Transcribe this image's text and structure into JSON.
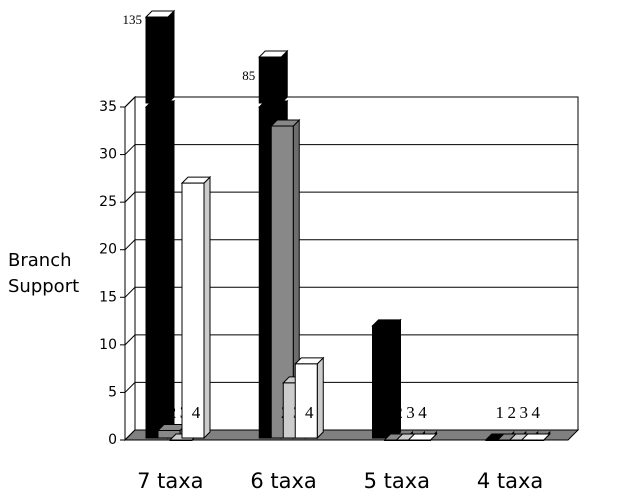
{
  "chart_data": {
    "type": "bar3d",
    "y_label": "Branch Support",
    "categories": [
      "7 taxa",
      "6 taxa",
      "5 taxa",
      "4 taxa"
    ],
    "series": [
      {
        "name": "1",
        "color": "#000000",
        "values": [
          135,
          85,
          12,
          0
        ]
      },
      {
        "name": "2",
        "color": "#888888",
        "values": [
          1,
          33,
          0,
          0
        ]
      },
      {
        "name": "3",
        "color": "#cccccc",
        "values": [
          0,
          6,
          0,
          0
        ]
      },
      {
        "name": "4",
        "color": "#ffffff",
        "values": [
          27,
          8,
          0,
          0
        ]
      }
    ],
    "ylim": [
      0,
      35
    ],
    "yticks": [
      0,
      5,
      10,
      15,
      20,
      25,
      30,
      35
    ],
    "grid": true
  }
}
